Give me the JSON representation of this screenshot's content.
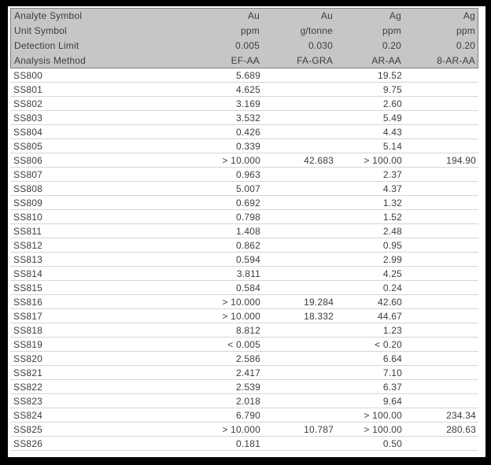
{
  "colors": {
    "frame_border": "#000000",
    "page_background": "#ffffff",
    "header_background": "#c6c6c6",
    "header_border": "#7f7f7f",
    "row_separator": "#d6d6d6",
    "text": "#3d3d3d"
  },
  "header": {
    "rows": [
      {
        "label": "Analyte Symbol",
        "values": [
          "Au",
          "Au",
          "Ag",
          "Ag"
        ]
      },
      {
        "label": "Unit Symbol",
        "values": [
          "ppm",
          "g/tonne",
          "ppm",
          "ppm"
        ]
      },
      {
        "label": "Detection Limit",
        "values": [
          "0.005",
          "0.030",
          "0.20",
          "0.20"
        ]
      },
      {
        "label": "Analysis Method",
        "values": [
          "EF-AA",
          "FA-GRA",
          "AR-AA",
          "8-AR-AA"
        ]
      }
    ]
  },
  "table": {
    "rows": [
      {
        "sample": "SS800",
        "values": [
          "5.689",
          "",
          "19.52",
          ""
        ]
      },
      {
        "sample": "SS801",
        "values": [
          "4.625",
          "",
          "9.75",
          ""
        ]
      },
      {
        "sample": "SS802",
        "values": [
          "3.169",
          "",
          "2.60",
          ""
        ]
      },
      {
        "sample": "SS803",
        "values": [
          "3.532",
          "",
          "5.49",
          ""
        ]
      },
      {
        "sample": "SS804",
        "values": [
          "0.426",
          "",
          "4.43",
          ""
        ]
      },
      {
        "sample": "SS805",
        "values": [
          "0.339",
          "",
          "5.14",
          ""
        ]
      },
      {
        "sample": "SS806",
        "values": [
          "> 10.000",
          "42.683",
          "> 100.00",
          "194.90"
        ]
      },
      {
        "sample": "SS807",
        "values": [
          "0.963",
          "",
          "2.37",
          ""
        ]
      },
      {
        "sample": "SS808",
        "values": [
          "5.007",
          "",
          "4.37",
          ""
        ]
      },
      {
        "sample": "SS809",
        "values": [
          "0.692",
          "",
          "1.32",
          ""
        ]
      },
      {
        "sample": "SS810",
        "values": [
          "0.798",
          "",
          "1.52",
          ""
        ]
      },
      {
        "sample": "SS811",
        "values": [
          "1.408",
          "",
          "2.48",
          ""
        ]
      },
      {
        "sample": "SS812",
        "values": [
          "0.862",
          "",
          "0.95",
          ""
        ]
      },
      {
        "sample": "SS813",
        "values": [
          "0.594",
          "",
          "2.99",
          ""
        ]
      },
      {
        "sample": "SS814",
        "values": [
          "3.811",
          "",
          "4.25",
          ""
        ]
      },
      {
        "sample": "SS815",
        "values": [
          "0.584",
          "",
          "0.24",
          ""
        ]
      },
      {
        "sample": "SS816",
        "values": [
          "> 10.000",
          "19.284",
          "42.60",
          ""
        ]
      },
      {
        "sample": "SS817",
        "values": [
          "> 10.000",
          "18.332",
          "44.67",
          ""
        ]
      },
      {
        "sample": "SS818",
        "values": [
          "8.812",
          "",
          "1.23",
          ""
        ]
      },
      {
        "sample": "SS819",
        "values": [
          "< 0.005",
          "",
          "< 0.20",
          ""
        ]
      },
      {
        "sample": "SS820",
        "values": [
          "2.586",
          "",
          "6.64",
          ""
        ]
      },
      {
        "sample": "SS821",
        "values": [
          "2.417",
          "",
          "7.10",
          ""
        ]
      },
      {
        "sample": "SS822",
        "values": [
          "2.539",
          "",
          "6.37",
          ""
        ]
      },
      {
        "sample": "SS823",
        "values": [
          "2.018",
          "",
          "9.64",
          ""
        ]
      },
      {
        "sample": "SS824",
        "values": [
          "6.790",
          "",
          "> 100.00",
          "234.34"
        ]
      },
      {
        "sample": "SS825",
        "values": [
          "> 10.000",
          "10.787",
          "> 100.00",
          "280.63"
        ]
      },
      {
        "sample": "SS826",
        "values": [
          "0.181",
          "",
          "0.50",
          ""
        ]
      }
    ]
  }
}
